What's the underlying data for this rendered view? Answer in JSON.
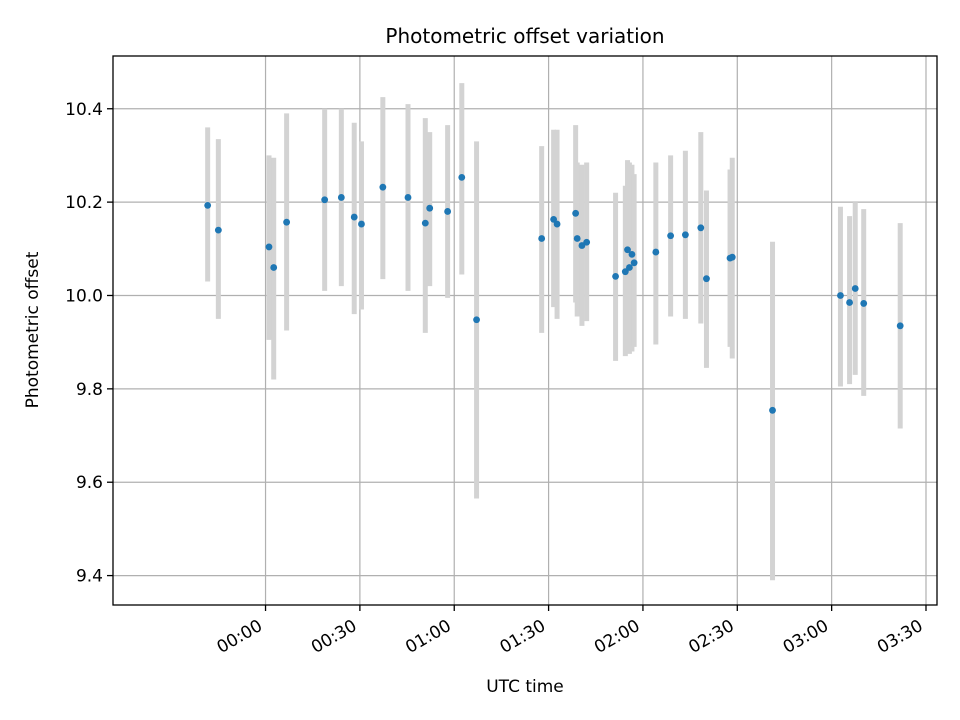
{
  "chart_data": {
    "type": "scatter",
    "title": "Photometric offset variation",
    "xlabel": "UTC time",
    "ylabel": "Photometric offset",
    "x_unit": "minutes after 00:00 UTC",
    "xlim": [
      -48.5,
      213.5
    ],
    "ylim": [
      9.337,
      10.513
    ],
    "grid": true,
    "x_ticks": [
      {
        "value": 0,
        "label": "00:00"
      },
      {
        "value": 30,
        "label": "00:30"
      },
      {
        "value": 60,
        "label": "01:00"
      },
      {
        "value": 90,
        "label": "01:30"
      },
      {
        "value": 120,
        "label": "02:00"
      },
      {
        "value": 150,
        "label": "02:30"
      },
      {
        "value": 180,
        "label": "03:00"
      },
      {
        "value": 210,
        "label": "03:30"
      }
    ],
    "y_ticks": [
      {
        "value": 9.4,
        "label": "9.4"
      },
      {
        "value": 9.6,
        "label": "9.6"
      },
      {
        "value": 9.8,
        "label": "9.8"
      },
      {
        "value": 10.0,
        "label": "10.0"
      },
      {
        "value": 10.2,
        "label": "10.2"
      },
      {
        "value": 10.4,
        "label": "10.4"
      }
    ],
    "series": [
      {
        "name": "Photometric offset",
        "color": "#1f77b4",
        "error_color": "#d3d3d3",
        "points": [
          {
            "x": -18.4,
            "y": 10.193,
            "lo": 10.03,
            "hi": 10.36
          },
          {
            "x": -15.0,
            "y": 10.14,
            "lo": 9.95,
            "hi": 10.335
          },
          {
            "x": 1.1,
            "y": 10.104,
            "lo": 9.905,
            "hi": 10.3
          },
          {
            "x": 2.6,
            "y": 10.06,
            "lo": 9.82,
            "hi": 10.295
          },
          {
            "x": 6.7,
            "y": 10.157,
            "lo": 9.925,
            "hi": 10.39
          },
          {
            "x": 18.8,
            "y": 10.205,
            "lo": 10.01,
            "hi": 10.4
          },
          {
            "x": 24.1,
            "y": 10.21,
            "lo": 10.02,
            "hi": 10.4
          },
          {
            "x": 28.2,
            "y": 10.168,
            "lo": 9.96,
            "hi": 10.37
          },
          {
            "x": 30.5,
            "y": 10.153,
            "lo": 9.97,
            "hi": 10.33
          },
          {
            "x": 37.3,
            "y": 10.232,
            "lo": 10.035,
            "hi": 10.425
          },
          {
            "x": 45.3,
            "y": 10.21,
            "lo": 10.01,
            "hi": 10.41
          },
          {
            "x": 50.8,
            "y": 10.155,
            "lo": 9.92,
            "hi": 10.38
          },
          {
            "x": 52.2,
            "y": 10.187,
            "lo": 10.02,
            "hi": 10.35
          },
          {
            "x": 57.9,
            "y": 10.18,
            "lo": 9.995,
            "hi": 10.365
          },
          {
            "x": 62.4,
            "y": 10.253,
            "lo": 10.045,
            "hi": 10.455
          },
          {
            "x": 67.1,
            "y": 9.948,
            "lo": 9.565,
            "hi": 10.33
          },
          {
            "x": 87.8,
            "y": 10.122,
            "lo": 9.92,
            "hi": 10.32
          },
          {
            "x": 91.6,
            "y": 10.163,
            "lo": 9.975,
            "hi": 10.355
          },
          {
            "x": 92.7,
            "y": 10.153,
            "lo": 9.95,
            "hi": 10.355
          },
          {
            "x": 98.6,
            "y": 10.176,
            "lo": 9.985,
            "hi": 10.365
          },
          {
            "x": 99.1,
            "y": 10.122,
            "lo": 9.955,
            "hi": 10.285
          },
          {
            "x": 100.6,
            "y": 10.107,
            "lo": 9.935,
            "hi": 10.28
          },
          {
            "x": 102.1,
            "y": 10.114,
            "lo": 9.945,
            "hi": 10.285
          },
          {
            "x": 111.3,
            "y": 10.041,
            "lo": 9.86,
            "hi": 10.22
          },
          {
            "x": 114.4,
            "y": 10.051,
            "lo": 9.87,
            "hi": 10.235
          },
          {
            "x": 115.1,
            "y": 10.098,
            "lo": 9.885,
            "hi": 10.29
          },
          {
            "x": 115.7,
            "y": 10.06,
            "lo": 9.875,
            "hi": 10.285
          },
          {
            "x": 116.5,
            "y": 10.088,
            "lo": 9.88,
            "hi": 10.28
          },
          {
            "x": 117.2,
            "y": 10.07,
            "lo": 9.89,
            "hi": 10.26
          },
          {
            "x": 124.1,
            "y": 10.093,
            "lo": 9.895,
            "hi": 10.285
          },
          {
            "x": 128.8,
            "y": 10.128,
            "lo": 9.955,
            "hi": 10.3
          },
          {
            "x": 133.5,
            "y": 10.13,
            "lo": 9.95,
            "hi": 10.31
          },
          {
            "x": 138.4,
            "y": 10.145,
            "lo": 9.94,
            "hi": 10.35
          },
          {
            "x": 140.2,
            "y": 10.036,
            "lo": 9.845,
            "hi": 10.225
          },
          {
            "x": 147.7,
            "y": 10.08,
            "lo": 9.89,
            "hi": 10.27
          },
          {
            "x": 148.4,
            "y": 10.082,
            "lo": 9.865,
            "hi": 10.295
          },
          {
            "x": 161.2,
            "y": 9.754,
            "lo": 9.39,
            "hi": 10.115
          },
          {
            "x": 182.8,
            "y": 10.0,
            "lo": 9.805,
            "hi": 10.19
          },
          {
            "x": 185.7,
            "y": 9.985,
            "lo": 9.81,
            "hi": 10.17
          },
          {
            "x": 187.5,
            "y": 10.015,
            "lo": 9.83,
            "hi": 10.2
          },
          {
            "x": 190.2,
            "y": 9.983,
            "lo": 9.785,
            "hi": 10.185
          },
          {
            "x": 201.8,
            "y": 9.935,
            "lo": 9.715,
            "hi": 10.155
          }
        ]
      }
    ]
  }
}
